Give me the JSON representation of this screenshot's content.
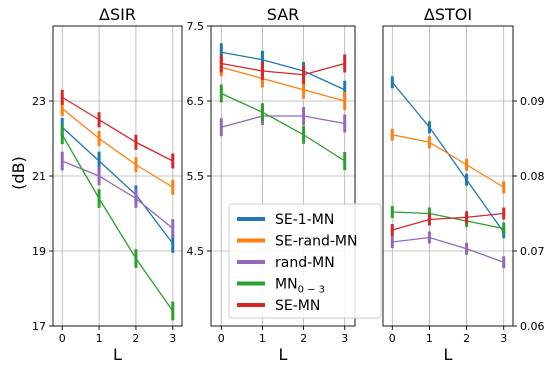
{
  "figure": {
    "ylabel": "(dB)"
  },
  "colors": {
    "SE-1-MN": "#1f77b4",
    "SE-rand-MN": "#ff7f0e",
    "rand-MN": "#9467bd",
    "MN0-3": "#2ca02c",
    "SE-MN": "#d62728"
  },
  "legend": {
    "placement": "lower-left of middle panel",
    "entries": [
      {
        "key": "SE-1-MN",
        "label": "SE-1-MN"
      },
      {
        "key": "SE-rand-MN",
        "label": "SE-rand-MN"
      },
      {
        "key": "rand-MN",
        "label": "rand-MN"
      },
      {
        "key": "MN0-3",
        "label": "MN",
        "subscript": "0 − 3"
      },
      {
        "key": "SE-MN",
        "label": "SE-MN"
      }
    ]
  },
  "chart_data": [
    {
      "type": "line",
      "title": "ΔSIR",
      "xlabel": "L",
      "ylabel": "(dB)",
      "x": [
        0,
        1,
        2,
        3
      ],
      "xticks": [
        "0",
        "1",
        "2",
        "3"
      ],
      "ylim": [
        17,
        25
      ],
      "yticks": [
        17,
        19,
        21,
        23
      ],
      "ytick_labels": [
        "17",
        "19",
        "21",
        "23"
      ],
      "yaxis_side": "left",
      "grid": true,
      "series": [
        {
          "name": "SE-1-MN",
          "values": [
            22.3,
            21.4,
            20.5,
            19.2
          ],
          "err": 0.25
        },
        {
          "name": "SE-rand-MN",
          "values": [
            22.8,
            22.0,
            21.3,
            20.7
          ],
          "err": 0.2
        },
        {
          "name": "rand-MN",
          "values": [
            21.4,
            21.0,
            20.4,
            19.6
          ],
          "err": 0.25
        },
        {
          "name": "MN0-3",
          "values": [
            22.1,
            20.4,
            18.8,
            17.4
          ],
          "err": 0.25
        },
        {
          "name": "SE-MN",
          "values": [
            23.1,
            22.5,
            21.9,
            21.4
          ],
          "err": 0.2
        }
      ]
    },
    {
      "type": "line",
      "title": "SAR",
      "xlabel": "L",
      "x": [
        0,
        1,
        2,
        3
      ],
      "xticks": [
        "0",
        "1",
        "2",
        "3"
      ],
      "ylim": [
        3.5,
        7.5
      ],
      "yticks": [
        4.5,
        5.5,
        6.5,
        7.5
      ],
      "ytick_labels": [
        "4.5",
        "5.5",
        "6.5",
        "7.5"
      ],
      "yaxis_side": "left",
      "grid": true,
      "series": [
        {
          "name": "SE-1-MN",
          "values": [
            7.15,
            7.05,
            6.9,
            6.65
          ],
          "err": 0.12
        },
        {
          "name": "SE-rand-MN",
          "values": [
            6.95,
            6.8,
            6.65,
            6.5
          ],
          "err": 0.12
        },
        {
          "name": "rand-MN",
          "values": [
            6.15,
            6.3,
            6.3,
            6.2
          ],
          "err": 0.12
        },
        {
          "name": "MN0-3",
          "values": [
            6.6,
            6.35,
            6.05,
            5.7
          ],
          "err": 0.12
        },
        {
          "name": "SE-MN",
          "values": [
            7.0,
            6.9,
            6.85,
            7.0
          ],
          "err": 0.12
        }
      ]
    },
    {
      "type": "line",
      "title": "ΔSTOI",
      "xlabel": "L",
      "x": [
        0,
        1,
        2,
        3
      ],
      "xticks": [
        "0",
        "1",
        "2",
        "3"
      ],
      "ylim": [
        0.06,
        0.1
      ],
      "yticks": [
        0.06,
        0.07,
        0.08,
        0.09
      ],
      "ytick_labels": [
        "0.06",
        "0.07",
        "0.08",
        "0.09"
      ],
      "yaxis_side": "right",
      "grid": true,
      "series": [
        {
          "name": "SE-1-MN",
          "values": [
            0.0925,
            0.0865,
            0.0795,
            0.0725
          ],
          "err": 0.0008
        },
        {
          "name": "SE-rand-MN",
          "values": [
            0.0855,
            0.0845,
            0.0815,
            0.0785
          ],
          "err": 0.0008
        },
        {
          "name": "rand-MN",
          "values": [
            0.0712,
            0.0718,
            0.0703,
            0.0685
          ],
          "err": 0.0008
        },
        {
          "name": "MN0-3",
          "values": [
            0.0752,
            0.075,
            0.074,
            0.073
          ],
          "err": 0.0008
        },
        {
          "name": "SE-MN",
          "values": [
            0.0728,
            0.0742,
            0.0745,
            0.075
          ],
          "err": 0.0008
        }
      ]
    }
  ]
}
